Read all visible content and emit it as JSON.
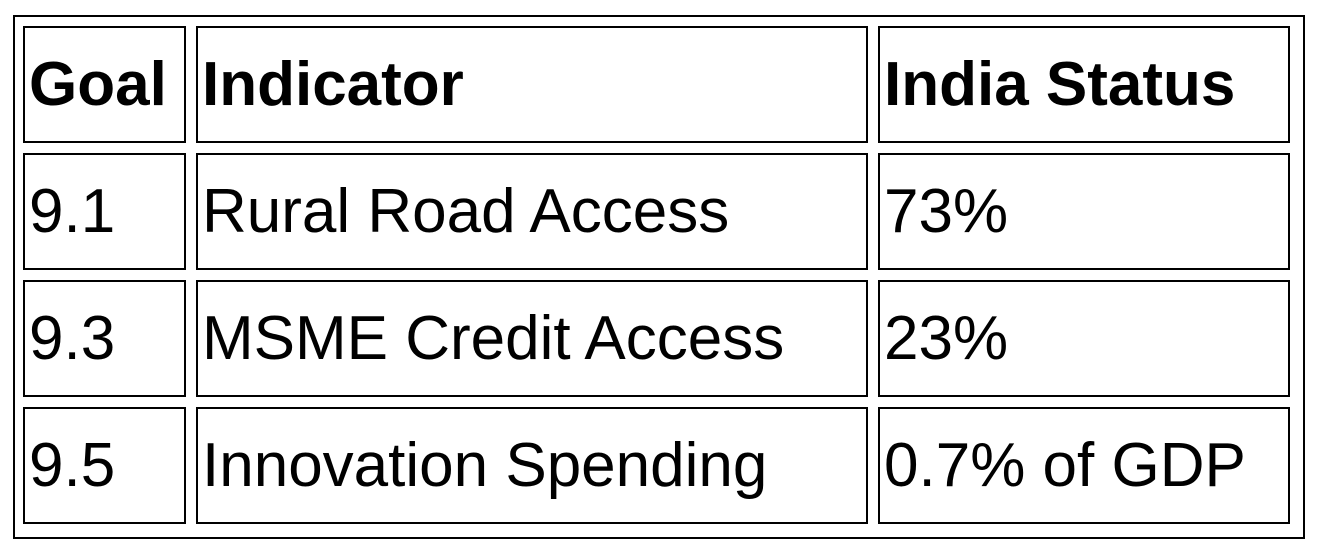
{
  "table": {
    "headers": [
      "Goal",
      "Indicator",
      "India Status"
    ],
    "rows": [
      [
        "9.1",
        "Rural Road Access",
        "73%"
      ],
      [
        "9.3",
        "MSME Credit Access",
        "23%"
      ],
      [
        "9.5",
        "Innovation Spending",
        "0.7% of GDP"
      ]
    ]
  }
}
